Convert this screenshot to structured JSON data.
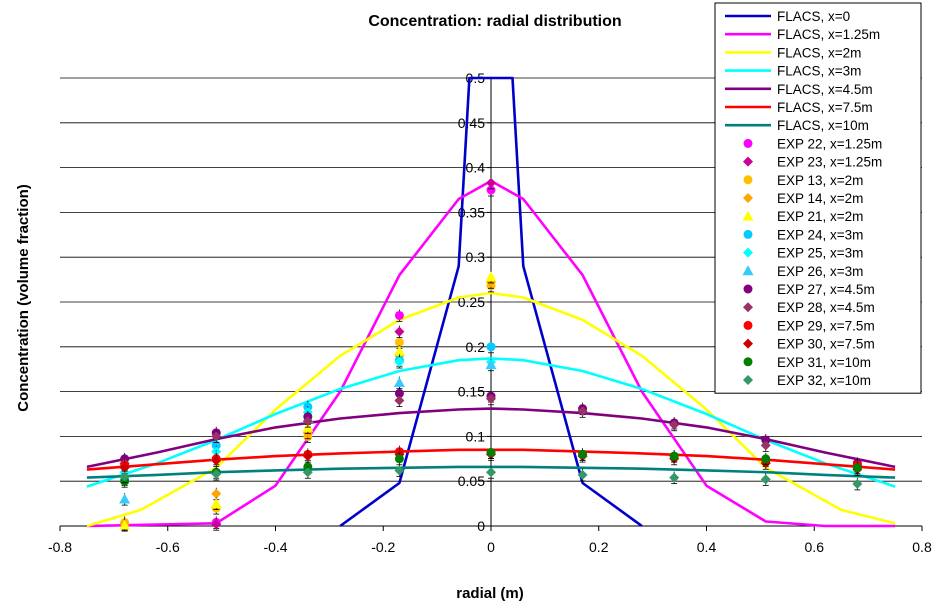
{
  "chart_data": {
    "type": "scatter",
    "title": "Concentration: radial distribution",
    "xlabel": "radial (m)",
    "ylabel": "Concentration (volume fraction)",
    "xlim": [
      -0.8,
      0.8
    ],
    "ylim": [
      0,
      0.5
    ],
    "xticks": [
      "-0.8",
      "-0.6",
      "-0.4",
      "-0.2",
      "0",
      "0.2",
      "0.4",
      "0.6",
      "0.8"
    ],
    "yticks": [
      "0",
      "0.05",
      "0.1",
      "0.15",
      "0.2",
      "0.25",
      "0.3",
      "0.35",
      "0.4",
      "0.45",
      "0.5"
    ],
    "grid": "horizontal",
    "legend_position": "top-right",
    "lines": [
      {
        "name": "FLACS, x=0",
        "color": "#0000CC",
        "points": [
          [
            -0.28,
            0
          ],
          [
            -0.17,
            0.048
          ],
          [
            -0.06,
            0.29
          ],
          [
            -0.04,
            0.5
          ],
          [
            0.04,
            0.5
          ],
          [
            0.06,
            0.29
          ],
          [
            0.17,
            0.048
          ],
          [
            0.28,
            0
          ]
        ]
      },
      {
        "name": "FLACS, x=1.25m",
        "color": "#FF00FF",
        "points": [
          [
            -0.75,
            0
          ],
          [
            -0.51,
            0.003
          ],
          [
            -0.4,
            0.045
          ],
          [
            -0.28,
            0.15
          ],
          [
            -0.17,
            0.28
          ],
          [
            -0.06,
            0.365
          ],
          [
            0,
            0.385
          ],
          [
            0.06,
            0.365
          ],
          [
            0.17,
            0.28
          ],
          [
            0.28,
            0.15
          ],
          [
            0.4,
            0.045
          ],
          [
            0.51,
            0.005
          ],
          [
            0.62,
            0
          ],
          [
            0.75,
            0
          ]
        ]
      },
      {
        "name": "FLACS, x=2m",
        "color": "#FFFF00",
        "points": [
          [
            -0.75,
            0
          ],
          [
            -0.65,
            0.018
          ],
          [
            -0.51,
            0.065
          ],
          [
            -0.4,
            0.13
          ],
          [
            -0.28,
            0.19
          ],
          [
            -0.17,
            0.23
          ],
          [
            -0.06,
            0.255
          ],
          [
            0,
            0.26
          ],
          [
            0.06,
            0.255
          ],
          [
            0.17,
            0.23
          ],
          [
            0.28,
            0.19
          ],
          [
            0.4,
            0.13
          ],
          [
            0.51,
            0.065
          ],
          [
            0.65,
            0.018
          ],
          [
            0.75,
            0.003
          ]
        ]
      },
      {
        "name": "FLACS, x=3m",
        "color": "#00FFFF",
        "points": [
          [
            -0.75,
            0.044
          ],
          [
            -0.62,
            0.07
          ],
          [
            -0.51,
            0.096
          ],
          [
            -0.4,
            0.125
          ],
          [
            -0.28,
            0.153
          ],
          [
            -0.17,
            0.173
          ],
          [
            -0.06,
            0.185
          ],
          [
            0,
            0.187
          ],
          [
            0.06,
            0.185
          ],
          [
            0.17,
            0.173
          ],
          [
            0.28,
            0.153
          ],
          [
            0.4,
            0.125
          ],
          [
            0.51,
            0.096
          ],
          [
            0.62,
            0.07
          ],
          [
            0.75,
            0.044
          ]
        ]
      },
      {
        "name": "FLACS, x=4.5m",
        "color": "#800080",
        "points": [
          [
            -0.75,
            0.066
          ],
          [
            -0.62,
            0.082
          ],
          [
            -0.51,
            0.097
          ],
          [
            -0.4,
            0.11
          ],
          [
            -0.28,
            0.12
          ],
          [
            -0.17,
            0.126
          ],
          [
            -0.06,
            0.13
          ],
          [
            0,
            0.131
          ],
          [
            0.06,
            0.13
          ],
          [
            0.17,
            0.126
          ],
          [
            0.28,
            0.12
          ],
          [
            0.4,
            0.11
          ],
          [
            0.51,
            0.097
          ],
          [
            0.62,
            0.082
          ],
          [
            0.75,
            0.066
          ]
        ]
      },
      {
        "name": "FLACS, x=7.5m",
        "color": "#FF0000",
        "points": [
          [
            -0.75,
            0.063
          ],
          [
            -0.62,
            0.069
          ],
          [
            -0.51,
            0.074
          ],
          [
            -0.4,
            0.078
          ],
          [
            -0.28,
            0.081
          ],
          [
            -0.17,
            0.083
          ],
          [
            -0.06,
            0.085
          ],
          [
            0,
            0.085
          ],
          [
            0.06,
            0.085
          ],
          [
            0.17,
            0.083
          ],
          [
            0.28,
            0.081
          ],
          [
            0.4,
            0.078
          ],
          [
            0.51,
            0.074
          ],
          [
            0.62,
            0.069
          ],
          [
            0.75,
            0.063
          ]
        ]
      },
      {
        "name": "FLACS, x=10m",
        "color": "#008080",
        "points": [
          [
            -0.75,
            0.054
          ],
          [
            -0.62,
            0.057
          ],
          [
            -0.51,
            0.06
          ],
          [
            -0.4,
            0.062
          ],
          [
            -0.28,
            0.064
          ],
          [
            -0.17,
            0.065
          ],
          [
            -0.06,
            0.066
          ],
          [
            0,
            0.066
          ],
          [
            0.06,
            0.066
          ],
          [
            0.17,
            0.065
          ],
          [
            0.28,
            0.064
          ],
          [
            0.4,
            0.062
          ],
          [
            0.51,
            0.06
          ],
          [
            0.62,
            0.057
          ],
          [
            0.75,
            0.054
          ]
        ]
      }
    ],
    "experiments": [
      {
        "name": "EXP 22, x=1.25m",
        "color": "#FF00FF",
        "marker": "circle",
        "points": [
          [
            -0.68,
            0.003
          ],
          [
            -0.51,
            0.004
          ],
          [
            -0.17,
            0.235
          ],
          [
            0,
            0.375
          ]
        ]
      },
      {
        "name": "EXP 23, x=1.25m",
        "color": "#CC0099",
        "marker": "diamond",
        "points": [
          [
            -0.68,
            0.002
          ],
          [
            -0.51,
            0.002
          ],
          [
            -0.17,
            0.217
          ],
          [
            0,
            0.383
          ]
        ]
      },
      {
        "name": "EXP 13, x=2m",
        "color": "#FFC000",
        "marker": "circle",
        "points": [
          [
            -0.68,
            0.004
          ],
          [
            -0.51,
            0.02
          ],
          [
            -0.34,
            0.1
          ],
          [
            -0.17,
            0.205
          ],
          [
            0,
            0.268
          ]
        ]
      },
      {
        "name": "EXP 14, x=2m",
        "color": "#FFA500",
        "marker": "diamond",
        "points": [
          [
            -0.68,
            0.002
          ],
          [
            -0.51,
            0.036
          ],
          [
            -0.34,
            0.104
          ],
          [
            -0.17,
            0.19
          ],
          [
            0,
            0.272
          ]
        ]
      },
      {
        "name": "EXP 21, x=2m",
        "color": "#FFFF00",
        "marker": "triangle",
        "points": [
          [
            -0.68,
            0.001
          ],
          [
            -0.51,
            0.025
          ],
          [
            -0.34,
            0.11
          ],
          [
            -0.17,
            0.195
          ],
          [
            0,
            0.278
          ]
        ]
      },
      {
        "name": "EXP 24, x=3m",
        "color": "#00CCFF",
        "marker": "circle",
        "points": [
          [
            -0.68,
            0.052
          ],
          [
            -0.51,
            0.09
          ],
          [
            -0.34,
            0.133
          ],
          [
            -0.17,
            0.185
          ],
          [
            0,
            0.2
          ]
        ]
      },
      {
        "name": "EXP 25, x=3m",
        "color": "#00FFFF",
        "marker": "diamond",
        "points": [
          [
            -0.68,
            0.06
          ],
          [
            -0.51,
            0.083
          ],
          [
            -0.34,
            0.127
          ],
          [
            -0.17,
            0.183
          ],
          [
            0,
            0.183
          ]
        ]
      },
      {
        "name": "EXP 26, x=3m",
        "color": "#33CCFF",
        "marker": "triangle",
        "points": [
          [
            -0.68,
            0.03
          ],
          [
            -0.51,
            0.078
          ],
          [
            -0.34,
            0.12
          ],
          [
            -0.17,
            0.16
          ],
          [
            0,
            0.18
          ]
        ]
      },
      {
        "name": "EXP 27, x=4.5m",
        "color": "#800080",
        "marker": "circle",
        "points": [
          [
            -0.68,
            0.075
          ],
          [
            -0.51,
            0.104
          ],
          [
            -0.34,
            0.122
          ],
          [
            -0.17,
            0.148
          ],
          [
            0,
            0.145
          ],
          [
            0.17,
            0.131
          ],
          [
            0.34,
            0.115
          ],
          [
            0.51,
            0.096
          ],
          [
            0.68,
            0.07
          ]
        ]
      },
      {
        "name": "EXP 28, x=4.5m",
        "color": "#993366",
        "marker": "diamond",
        "points": [
          [
            -0.68,
            0.07
          ],
          [
            -0.51,
            0.1
          ],
          [
            -0.34,
            0.117
          ],
          [
            -0.17,
            0.14
          ],
          [
            0,
            0.142
          ],
          [
            0.17,
            0.128
          ],
          [
            0.34,
            0.113
          ],
          [
            0.51,
            0.09
          ],
          [
            0.68,
            0.068
          ]
        ]
      },
      {
        "name": "EXP 29, x=7.5m",
        "color": "#FF0000",
        "marker": "circle",
        "points": [
          [
            -0.68,
            0.068
          ],
          [
            -0.51,
            0.075
          ],
          [
            -0.34,
            0.08
          ],
          [
            -0.17,
            0.083
          ],
          [
            0,
            0.082
          ],
          [
            0.17,
            0.08
          ],
          [
            0.34,
            0.078
          ],
          [
            0.51,
            0.073
          ],
          [
            0.68,
            0.068
          ]
        ]
      },
      {
        "name": "EXP 30, x=7.5m",
        "color": "#CC0000",
        "marker": "diamond",
        "points": [
          [
            -0.68,
            0.065
          ],
          [
            -0.51,
            0.073
          ],
          [
            -0.34,
            0.078
          ],
          [
            -0.17,
            0.08
          ],
          [
            0,
            0.08
          ],
          [
            0.17,
            0.078
          ],
          [
            0.34,
            0.075
          ],
          [
            0.51,
            0.07
          ],
          [
            0.68,
            0.063
          ]
        ]
      },
      {
        "name": "EXP 31, x=10m",
        "color": "#008000",
        "marker": "circle",
        "points": [
          [
            -0.68,
            0.05
          ],
          [
            -0.51,
            0.06
          ],
          [
            -0.34,
            0.066
          ],
          [
            -0.17,
            0.075
          ],
          [
            0,
            0.082
          ],
          [
            0.17,
            0.08
          ],
          [
            0.34,
            0.078
          ],
          [
            0.51,
            0.075
          ],
          [
            0.68,
            0.065
          ]
        ]
      },
      {
        "name": "EXP 32, x=10m",
        "color": "#339966",
        "marker": "diamond",
        "points": [
          [
            -0.68,
            0.055
          ],
          [
            -0.51,
            0.058
          ],
          [
            -0.34,
            0.06
          ],
          [
            -0.17,
            0.062
          ],
          [
            0,
            0.06
          ],
          [
            0.17,
            0.057
          ],
          [
            0.34,
            0.054
          ],
          [
            0.51,
            0.052
          ],
          [
            0.68,
            0.047
          ]
        ]
      }
    ]
  }
}
